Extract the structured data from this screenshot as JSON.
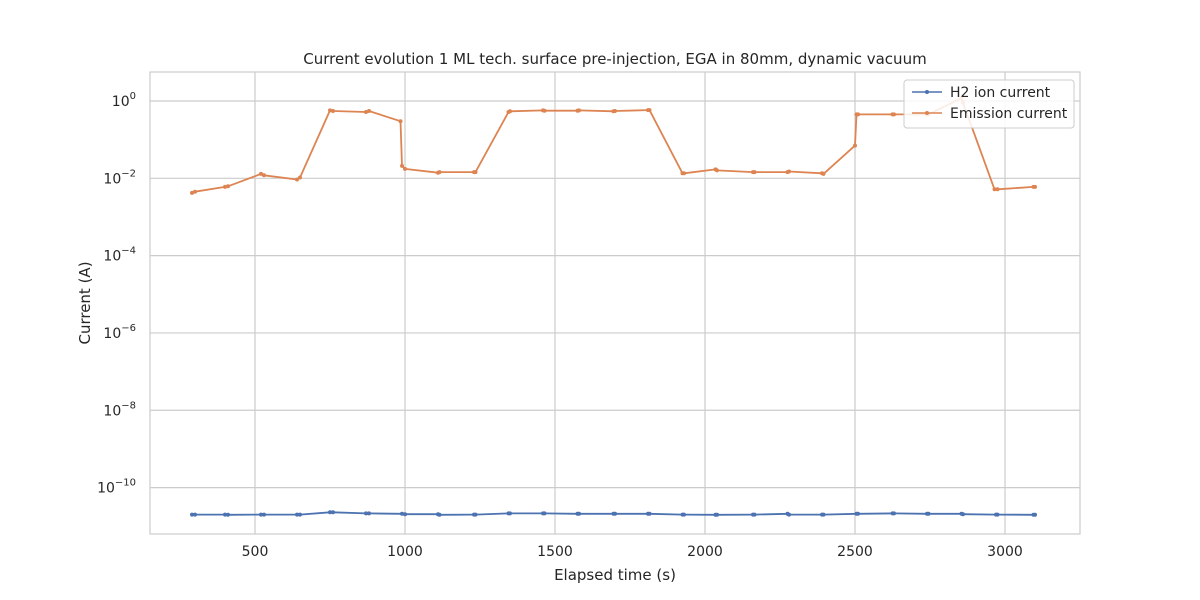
{
  "chart_data": {
    "type": "line",
    "title": "Current evolution 1 ML tech. surface pre-injection, EGA in 80mm, dynamic vacuum",
    "xlabel": "Elapsed time (s)",
    "ylabel": "Current (A)",
    "yscale": "log",
    "xlim": [
      150,
      3250
    ],
    "ylim_exponent": [
      -11.2,
      0.75
    ],
    "x_ticks": [
      500,
      1000,
      1500,
      2000,
      2500,
      3000
    ],
    "y_tick_exponents": [
      0,
      -2,
      -4,
      -6,
      -8,
      -10
    ],
    "grid": true,
    "legend_position": "top-right",
    "series": [
      {
        "name": "H2 ion current",
        "color": "#4c72b0",
        "x": [
          290,
          300,
          400,
          410,
          520,
          530,
          640,
          650,
          750,
          760,
          870,
          880,
          990,
          1000,
          1110,
          1115,
          1230,
          1235,
          1345,
          1350,
          1460,
          1465,
          1575,
          1580,
          1695,
          1700,
          1810,
          1815,
          1925,
          1930,
          2035,
          2040,
          2160,
          2165,
          2275,
          2280,
          2390,
          2395,
          2505,
          2510,
          2625,
          2630,
          2740,
          2745,
          2855,
          2860,
          2970,
          2975,
          3095,
          3100
        ],
        "y": [
          2e-11,
          2e-11,
          2e-11,
          1.98e-11,
          2e-11,
          2e-11,
          2e-11,
          2e-11,
          2.3e-11,
          2.3e-11,
          2.15e-11,
          2.15e-11,
          2.1e-11,
          2.05e-11,
          2.05e-11,
          1.98e-11,
          2e-11,
          2e-11,
          2.15e-11,
          2.15e-11,
          2.15e-11,
          2.15e-11,
          2.1e-11,
          2.1e-11,
          2.1e-11,
          2.1e-11,
          2.1e-11,
          2.1e-11,
          2e-11,
          2e-11,
          1.98e-11,
          1.98e-11,
          2e-11,
          2e-11,
          2.1e-11,
          2e-11,
          2e-11,
          2e-11,
          2.1e-11,
          2.1e-11,
          2.15e-11,
          2.15e-11,
          2.1e-11,
          2.1e-11,
          2.1e-11,
          2.05e-11,
          2e-11,
          2e-11,
          1.98e-11,
          1.98e-11
        ]
      },
      {
        "name": "Emission current",
        "color": "#dd8452",
        "x": [
          290,
          300,
          400,
          410,
          520,
          530,
          640,
          650,
          750,
          760,
          870,
          880,
          985,
          990,
          1000,
          1110,
          1115,
          1230,
          1235,
          1345,
          1350,
          1460,
          1465,
          1575,
          1580,
          1695,
          1700,
          1810,
          1815,
          1925,
          1930,
          2035,
          2040,
          2160,
          2165,
          2275,
          2280,
          2390,
          2395,
          2500,
          2505,
          2510,
          2625,
          2630,
          2740,
          2745,
          2855,
          2860,
          2965,
          2975,
          3095,
          3100
        ],
        "y": [
          0.0042,
          0.0045,
          0.006,
          0.0062,
          0.013,
          0.012,
          0.0093,
          0.0105,
          0.57,
          0.55,
          0.52,
          0.55,
          0.3,
          0.021,
          0.0175,
          0.014,
          0.0145,
          0.0145,
          0.0145,
          0.52,
          0.54,
          0.57,
          0.56,
          0.56,
          0.57,
          0.54,
          0.55,
          0.58,
          0.58,
          0.0135,
          0.0135,
          0.017,
          0.016,
          0.0145,
          0.0145,
          0.0145,
          0.015,
          0.0135,
          0.013,
          0.07,
          0.45,
          0.45,
          0.45,
          0.45,
          0.45,
          0.45,
          1.2,
          0.9,
          0.0052,
          0.0052,
          0.006,
          0.006
        ]
      }
    ]
  }
}
